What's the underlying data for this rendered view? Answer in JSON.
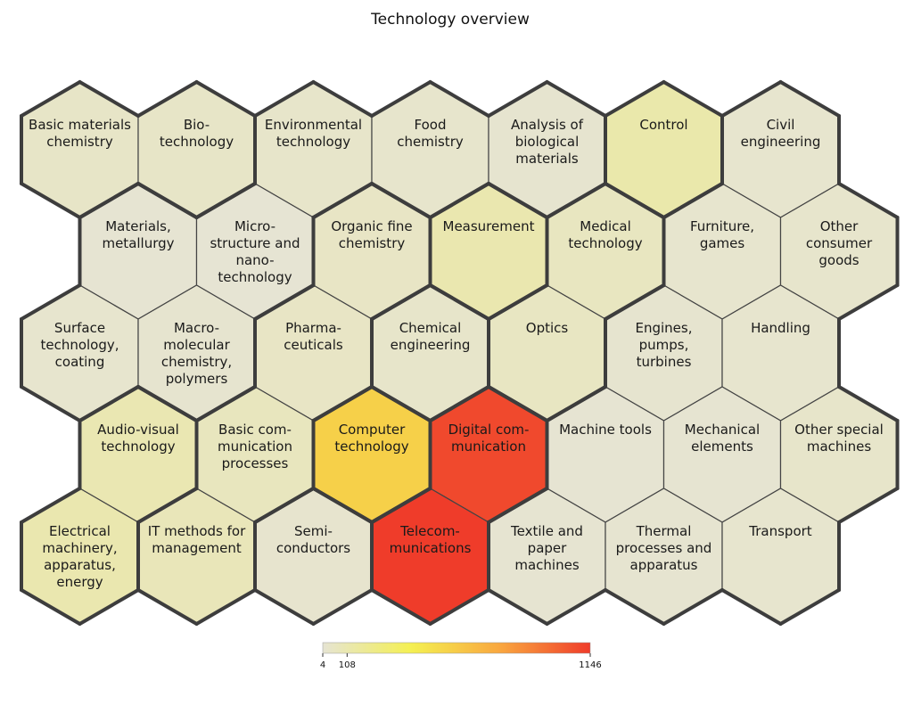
{
  "chart_data": {
    "type": "heatmap",
    "title": "Technology overview",
    "layout": "hexagonal grid",
    "colormap": [
      "#e6e4d3",
      "#f4f051",
      "#f9a63f",
      "#ef3c2a"
    ],
    "colorbar": {
      "min": 4,
      "max": 1146,
      "ticks": [
        4,
        108,
        1146
      ]
    },
    "cells": [
      {
        "label": "Basic materials chemistry",
        "lines": [
          "Basic materials",
          "chemistry"
        ],
        "row": 0,
        "col": 0,
        "value": 40
      },
      {
        "label": "Biotechnology",
        "lines": [
          "Bio-",
          "technology"
        ],
        "row": 0,
        "col": 1,
        "value": 40
      },
      {
        "label": "Environmental technology",
        "lines": [
          "Environmental",
          "technology"
        ],
        "row": 0,
        "col": 2,
        "value": 30
      },
      {
        "label": "Food chemistry",
        "lines": [
          "Food",
          "chemistry"
        ],
        "row": 0,
        "col": 3,
        "value": 25
      },
      {
        "label": "Analysis of biological materials",
        "lines": [
          "Analysis of",
          "biological",
          "materials"
        ],
        "row": 0,
        "col": 4,
        "value": 15
      },
      {
        "label": "Control",
        "lines": [
          "Control"
        ],
        "row": 0,
        "col": 5,
        "value": 120
      },
      {
        "label": "Civil engineering",
        "lines": [
          "Civil",
          "engineering"
        ],
        "row": 0,
        "col": 6,
        "value": 20
      },
      {
        "label": "Materials, metallurgy",
        "lines": [
          "Materials,",
          "metallurgy"
        ],
        "row": 1,
        "col": 0,
        "value": 8
      },
      {
        "label": "Micro-structure and nano-technology",
        "lines": [
          "Micro-",
          "structure and",
          "nano-",
          "technology"
        ],
        "row": 1,
        "col": 1,
        "value": 5
      },
      {
        "label": "Organic fine chemistry",
        "lines": [
          "Organic fine",
          "chemistry"
        ],
        "row": 1,
        "col": 2,
        "value": 45
      },
      {
        "label": "Measurement",
        "lines": [
          "Measurement"
        ],
        "row": 1,
        "col": 3,
        "value": 110
      },
      {
        "label": "Medical technology",
        "lines": [
          "Medical",
          "technology"
        ],
        "row": 1,
        "col": 4,
        "value": 60
      },
      {
        "label": "Furniture, games",
        "lines": [
          "Furniture,",
          "games"
        ],
        "row": 1,
        "col": 5,
        "value": 20
      },
      {
        "label": "Other consumer goods",
        "lines": [
          "Other",
          "consumer",
          "goods"
        ],
        "row": 1,
        "col": 6,
        "value": 25
      },
      {
        "label": "Surface technology, coating",
        "lines": [
          "Surface",
          "technology,",
          "coating"
        ],
        "row": 2,
        "col": 0,
        "value": 20
      },
      {
        "label": "Macromolecular chemistry, polymers",
        "lines": [
          "Macro-",
          "molecular",
          "chemistry,",
          "polymers"
        ],
        "row": 2,
        "col": 1,
        "value": 15
      },
      {
        "label": "Pharmaceuticals",
        "lines": [
          "Pharma-",
          "ceuticals"
        ],
        "row": 2,
        "col": 2,
        "value": 45
      },
      {
        "label": "Chemical engineering",
        "lines": [
          "Chemical",
          "engineering"
        ],
        "row": 2,
        "col": 3,
        "value": 30
      },
      {
        "label": "Optics",
        "lines": [
          "Optics"
        ],
        "row": 2,
        "col": 4,
        "value": 55
      },
      {
        "label": "Engines, pumps, turbines",
        "lines": [
          "Engines,",
          "pumps,",
          "turbines"
        ],
        "row": 2,
        "col": 5,
        "value": 15
      },
      {
        "label": "Handling",
        "lines": [
          "Handling"
        ],
        "row": 2,
        "col": 6,
        "value": 20
      },
      {
        "label": "Audio-visual technology",
        "lines": [
          "Audio-visual",
          "technology"
        ],
        "row": 3,
        "col": 0,
        "value": 100
      },
      {
        "label": "Basic communication processes",
        "lines": [
          "Basic com-",
          "munication",
          "processes"
        ],
        "row": 3,
        "col": 1,
        "value": 65
      },
      {
        "label": "Computer technology",
        "lines": [
          "Computer",
          "technology"
        ],
        "row": 3,
        "col": 2,
        "value": 550
      },
      {
        "label": "Digital communication",
        "lines": [
          "Digital com-",
          "munication"
        ],
        "row": 3,
        "col": 3,
        "value": 1100
      },
      {
        "label": "Machine tools",
        "lines": [
          "Machine tools"
        ],
        "row": 3,
        "col": 4,
        "value": 6
      },
      {
        "label": "Mechanical elements",
        "lines": [
          "Mechanical",
          "elements"
        ],
        "row": 3,
        "col": 5,
        "value": 10
      },
      {
        "label": "Other special machines",
        "lines": [
          "Other special",
          "machines"
        ],
        "row": 3,
        "col": 6,
        "value": 30
      },
      {
        "label": "Electrical machinery, apparatus, energy",
        "lines": [
          "Electrical",
          "machinery,",
          "apparatus,",
          "energy"
        ],
        "row": 4,
        "col": 0,
        "value": 108
      },
      {
        "label": "IT methods for management",
        "lines": [
          "IT methods for",
          "management"
        ],
        "row": 4,
        "col": 1,
        "value": 80
      },
      {
        "label": "Semiconductors",
        "lines": [
          "Semi-",
          "conductors"
        ],
        "row": 4,
        "col": 2,
        "value": 18
      },
      {
        "label": "Telecommunications",
        "lines": [
          "Telecom-",
          "munications"
        ],
        "row": 4,
        "col": 3,
        "value": 1146
      },
      {
        "label": "Textile and paper machines",
        "lines": [
          "Textile and",
          "paper",
          "machines"
        ],
        "row": 4,
        "col": 4,
        "value": 10
      },
      {
        "label": "Thermal processes and apparatus",
        "lines": [
          "Thermal",
          "processes and",
          "apparatus"
        ],
        "row": 4,
        "col": 5,
        "value": 12
      },
      {
        "label": "Transport",
        "lines": [
          "Transport"
        ],
        "row": 4,
        "col": 6,
        "value": 20
      }
    ]
  }
}
